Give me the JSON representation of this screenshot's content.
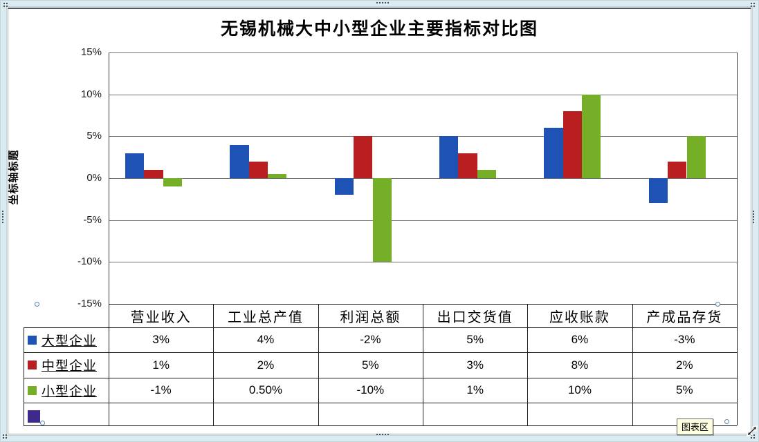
{
  "tooltip": {
    "label": "图表区"
  },
  "chart_data": {
    "type": "bar",
    "title": "无锡机械大中小型企业主要指标对比图",
    "y_axis_title": "坐标轴标题",
    "categories": [
      "营业收入",
      "工业总产值",
      "利润总额",
      "出口交货值",
      "应收账款",
      "产成品存货"
    ],
    "series": [
      {
        "name": "大型企业",
        "color": "#1E52B4",
        "values": [
          3,
          4,
          -2,
          5,
          6,
          -3
        ],
        "labels": [
          "3%",
          "4%",
          "-2%",
          "5%",
          "6%",
          "-3%"
        ]
      },
      {
        "name": "中型企业",
        "color": "#B91E20",
        "values": [
          1,
          2,
          5,
          3,
          8,
          2
        ],
        "labels": [
          "1%",
          "2%",
          "5%",
          "3%",
          "8%",
          "2%"
        ]
      },
      {
        "name": "小型企业",
        "color": "#74AF27",
        "values": [
          -1,
          0.5,
          -10,
          1,
          10,
          5
        ],
        "labels": [
          "-1%",
          "0.50%",
          "-10%",
          "1%",
          "10%",
          "5%"
        ]
      },
      {
        "name": "",
        "color": "#3E2A8B",
        "values": null,
        "labels": [
          "",
          "",
          "",
          "",
          "",
          ""
        ]
      }
    ],
    "y_ticks": [
      {
        "label": "15%",
        "pct": 15
      },
      {
        "label": "10%",
        "pct": 10
      },
      {
        "label": "5%",
        "pct": 5
      },
      {
        "label": "0%",
        "pct": 0
      },
      {
        "label": "-5%",
        "pct": -5
      },
      {
        "label": "-10%",
        "pct": -10
      },
      {
        "label": "-15%",
        "pct": -15
      }
    ],
    "ylim": [
      -15,
      15
    ],
    "grid": true,
    "legend_position": "left-of-data-table"
  }
}
